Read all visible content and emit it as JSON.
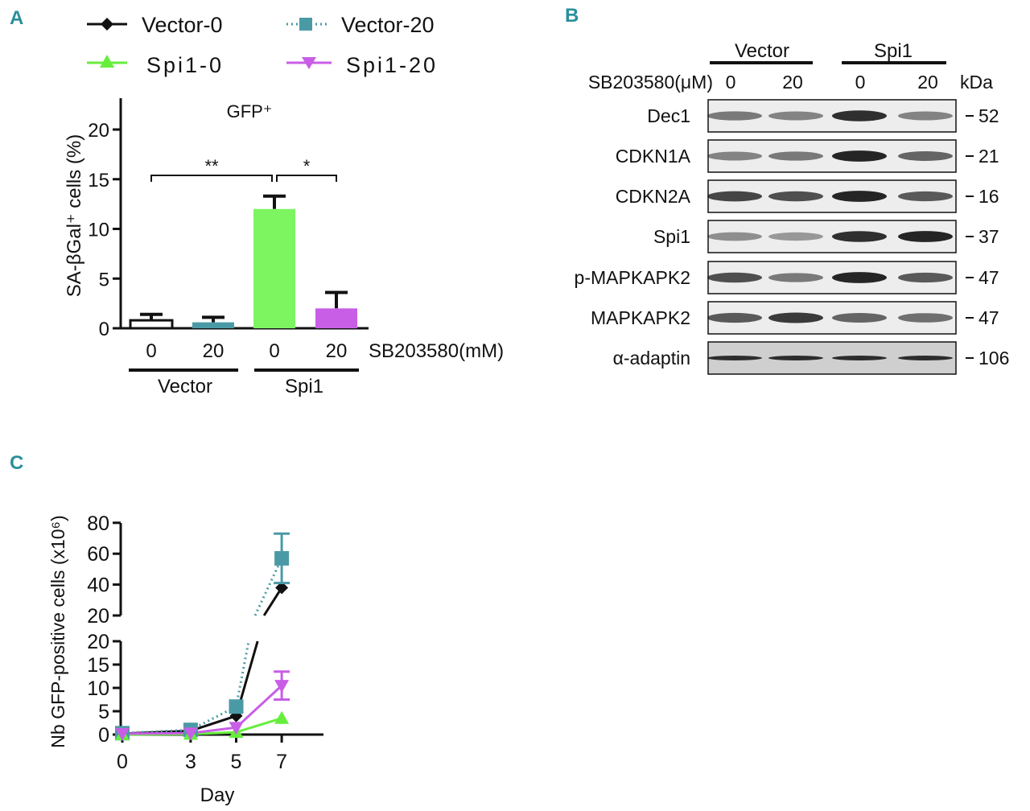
{
  "panels": {
    "a": "A",
    "b": "B",
    "c": "C"
  },
  "legend": [
    {
      "label": "Vector-0",
      "color": "#111111",
      "marker": "diamond",
      "dash": false
    },
    {
      "label": "Vector-20",
      "color": "#4a9aa6",
      "marker": "square",
      "dash": true
    },
    {
      "label": "Spi1-0",
      "color": "#66ee3c",
      "marker": "triangle-up",
      "dash": false
    },
    {
      "label": "Spi1-20",
      "color": "#c85ee6",
      "marker": "triangle-down",
      "dash": false
    }
  ],
  "chart_data": [
    {
      "id": "A",
      "type": "bar",
      "title": "GFP⁺",
      "ylabel": "SA-βGal⁺ cells (%)",
      "ylim": [
        0,
        23
      ],
      "yticks": [
        0,
        5,
        10,
        15,
        20
      ],
      "categories": [
        "0",
        "20",
        "0",
        "20"
      ],
      "values": [
        0.8,
        0.6,
        12.0,
        2.0
      ],
      "errors": [
        0.6,
        0.5,
        1.3,
        1.6
      ],
      "colors": [
        "#ffffff",
        "#4a9aa6",
        "#7cf560",
        "#c85ee6"
      ],
      "xlabel": "SB203580(mM)",
      "groups": [
        "Vector",
        "Spi1"
      ],
      "significance": [
        {
          "from": 0,
          "to": 2,
          "label": "**"
        },
        {
          "from": 2,
          "to": 3,
          "label": "*"
        }
      ]
    },
    {
      "id": "C",
      "type": "line",
      "xlabel": "Day",
      "ylabel": "Nb GFP-positive cells (x10⁶)",
      "x_ticks": [
        0,
        3,
        5,
        7
      ],
      "y_ticks_lower": [
        0,
        5,
        10,
        15,
        20
      ],
      "y_ticks_upper": [
        20,
        40,
        60,
        80
      ],
      "series": [
        {
          "name": "Vector-0",
          "x": [
            0,
            3,
            5,
            7
          ],
          "y": [
            0.2,
            0.8,
            4.0,
            38.0
          ],
          "err": [
            0,
            0,
            0,
            0
          ]
        },
        {
          "name": "Vector-20",
          "x": [
            0,
            3,
            5,
            7
          ],
          "y": [
            0.3,
            1.0,
            6.0,
            57.0
          ],
          "err": [
            0,
            0,
            0,
            16.0
          ]
        },
        {
          "name": "Spi1-0",
          "x": [
            0,
            3,
            5,
            7
          ],
          "y": [
            0.0,
            0.1,
            0.5,
            3.5
          ],
          "err": [
            0,
            0,
            0,
            0
          ]
        },
        {
          "name": "Spi1-20",
          "x": [
            0,
            3,
            5,
            7
          ],
          "y": [
            0.2,
            0.3,
            1.5,
            10.5
          ],
          "err": [
            0,
            0,
            0,
            3.0
          ]
        }
      ]
    }
  ],
  "blot": {
    "groups": [
      "Vector",
      "Spi1"
    ],
    "treatment_label": "SB203580(μM)",
    "lanes": [
      "0",
      "20",
      "0",
      "20"
    ],
    "kda_label": "kDa",
    "rows": [
      {
        "name": "Dec1",
        "kda": "52"
      },
      {
        "name": "CDKN1A",
        "kda": "21"
      },
      {
        "name": "CDKN2A",
        "kda": "16"
      },
      {
        "name": "Spi1",
        "kda": "37"
      },
      {
        "name": "p-MAPKAPK2",
        "kda": "47"
      },
      {
        "name": "MAPKAPK2",
        "kda": "47"
      },
      {
        "name": "α-adaptin",
        "kda": "106"
      }
    ]
  }
}
